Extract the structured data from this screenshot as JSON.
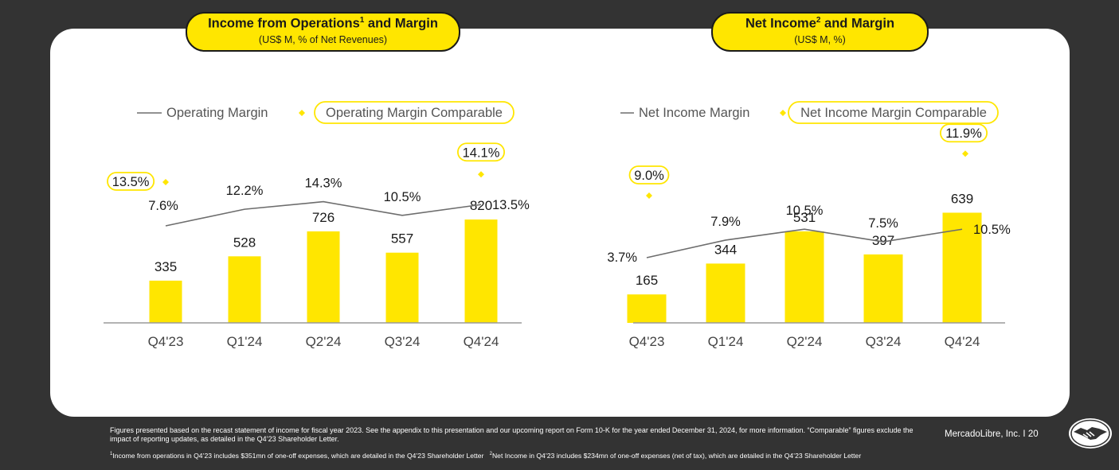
{
  "charts": {
    "left": {
      "title": "Income from Operations",
      "title_sup": "1",
      "title_rest": " and Margin",
      "subtitle": "(US$ M, % of Net Revenues)",
      "legend_line": "Operating Margin",
      "legend_marker": "Operating Margin Comparable"
    },
    "right": {
      "title": "Net Income",
      "title_sup": "2",
      "title_rest": " and Margin",
      "subtitle": "(US$ M, %)",
      "legend_line": "Net Income Margin",
      "legend_marker": "Net Income Margin Comparable"
    }
  },
  "chart_data": [
    {
      "type": "bar",
      "title": "Income from Operations and Margin",
      "categories": [
        "Q4'23",
        "Q1'24",
        "Q2'24",
        "Q3'24",
        "Q4'24"
      ],
      "series": [
        {
          "name": "Income from Operations",
          "type": "bar",
          "values": [
            335,
            528,
            726,
            557,
            820
          ],
          "labels": [
            "335",
            "528",
            "726",
            "557",
            "820"
          ]
        },
        {
          "name": "Operating Margin",
          "type": "line",
          "values": [
            7.6,
            12.2,
            14.3,
            10.5,
            13.5
          ],
          "labels": [
            "7.6%",
            "12.2%",
            "14.3%",
            "10.5%",
            "13.5%"
          ]
        },
        {
          "name": "Operating Margin Comparable",
          "type": "scatter",
          "points": [
            {
              "category": "Q4'23",
              "value": 13.5,
              "label": "13.5%"
            },
            {
              "category": "Q4'24",
              "value": 14.1,
              "label": "14.1%"
            }
          ]
        }
      ],
      "legend": "top-left",
      "grid": false
    },
    {
      "type": "bar",
      "title": "Net Income and Margin",
      "categories": [
        "Q4'23",
        "Q1'24",
        "Q2'24",
        "Q3'24",
        "Q4'24"
      ],
      "series": [
        {
          "name": "Net Income",
          "type": "bar",
          "values": [
            165,
            344,
            531,
            397,
            639
          ],
          "labels": [
            "165",
            "344",
            "531",
            "397",
            "639"
          ]
        },
        {
          "name": "Net Income Margin",
          "type": "line",
          "values": [
            3.7,
            7.9,
            10.5,
            7.5,
            10.5
          ],
          "labels": [
            "3.7%",
            "7.9%",
            "10.5%",
            "7.5%",
            "10.5%"
          ]
        },
        {
          "name": "Net Income Margin Comparable",
          "type": "scatter",
          "points": [
            {
              "category": "Q4'23",
              "value": 9.0,
              "label": "9.0%"
            },
            {
              "category": "Q4'24",
              "value": 11.9,
              "label": "11.9%"
            }
          ]
        }
      ],
      "legend": "top-left",
      "grid": false
    }
  ],
  "footer": {
    "main": "Figures presented based on the recast statement of income for fiscal year 2023. See the appendix to this presentation and our upcoming report on Form 10-K for the year ended December 31, 2024, for more information. “Comparable” figures exclude the impact of reporting updates, as detailed in the Q4’23 Shareholder Letter.",
    "note1_sup": "1",
    "note1": "Income from operations in Q4’23 includes $351mn of one-off expenses, which are detailed in the Q4’23 Shareholder Letter",
    "note2_sup": "2",
    "note2": "Net Income in Q4’23 includes $234mn of one-off expenses (net of tax), which are detailed in the Q4’23 Shareholder Letter",
    "brand": "MercadoLibre, Inc.  I  20"
  },
  "colors": {
    "accent": "#ffe600",
    "line": "#6d6d6d",
    "text": "#1a1a1a",
    "background": "#333333"
  },
  "icons": {
    "logo": "handshake-logo-icon"
  }
}
